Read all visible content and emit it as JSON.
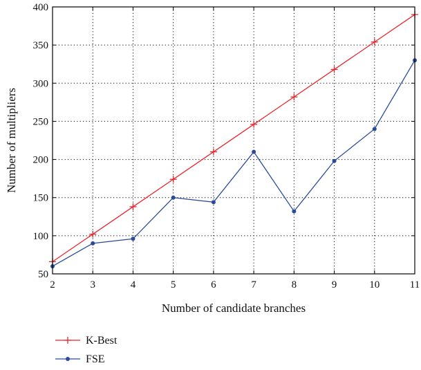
{
  "chart_data": {
    "type": "line",
    "title": "",
    "xlabel": "Number of candidate branches",
    "ylabel": "Number of multipliers",
    "x": [
      2,
      3,
      4,
      5,
      6,
      7,
      8,
      9,
      10,
      11
    ],
    "xlim": [
      2,
      11
    ],
    "ylim": [
      50,
      400
    ],
    "xticks": [
      "2",
      "3",
      "4",
      "5",
      "6",
      "7",
      "8",
      "9",
      "10",
      "11"
    ],
    "yticks": [
      "50",
      "100",
      "150",
      "200",
      "250",
      "300",
      "350",
      "400"
    ],
    "grid": "dotted",
    "legend_position": "below",
    "series": [
      {
        "name": "K-Best",
        "color": "#e8262c",
        "marker": "plus",
        "values": [
          66,
          102,
          138,
          174,
          210,
          246,
          282,
          318,
          354,
          390
        ]
      },
      {
        "name": "FSE",
        "color": "#2b4a9c",
        "marker": "dot",
        "values": [
          60,
          90,
          96,
          150,
          144,
          210,
          132,
          198,
          240,
          330
        ]
      }
    ]
  }
}
